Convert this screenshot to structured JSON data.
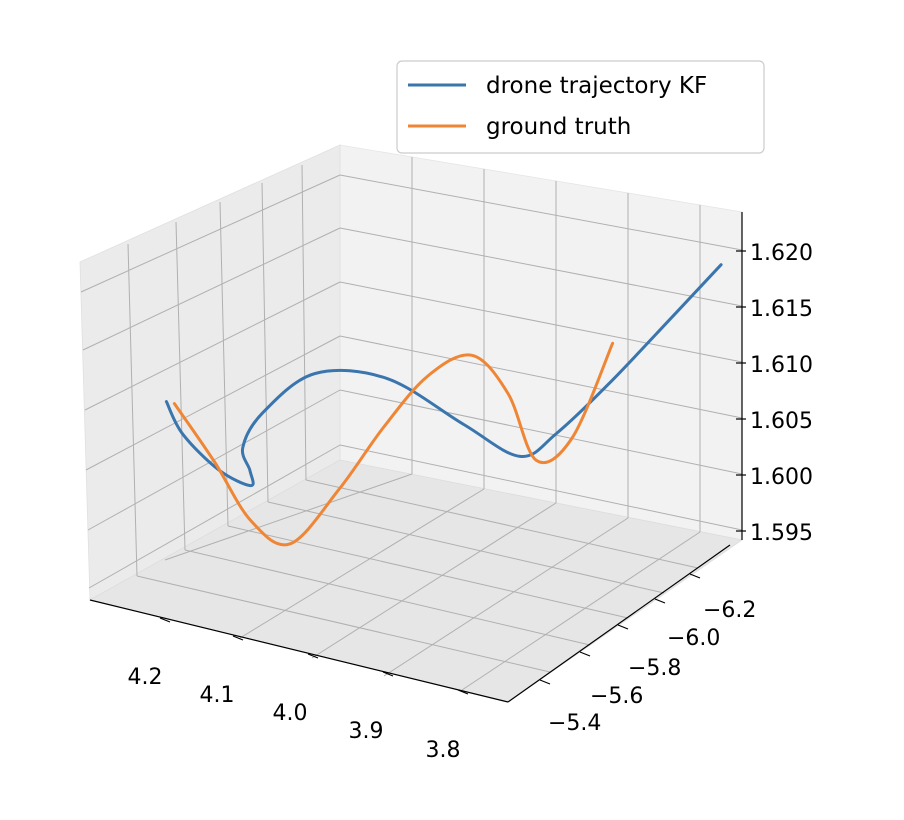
{
  "chart_data": {
    "type": "line",
    "projection": "3d",
    "grid": true,
    "legend_position": "upper-right",
    "axes": {
      "x": {
        "ticks": [
          "4.2",
          "4.1",
          "4.0",
          "3.9",
          "3.8"
        ],
        "range": [
          3.75,
          4.27
        ]
      },
      "y": {
        "ticks": [
          "−5.4",
          "−5.6",
          "−5.8",
          "−6.0",
          "−6.2"
        ],
        "range": [
          -5.35,
          -6.32
        ]
      },
      "z": {
        "ticks": [
          "1.595",
          "1.600",
          "1.605",
          "1.610",
          "1.615",
          "1.620"
        ],
        "range": [
          1.594,
          1.6225
        ]
      }
    },
    "series": [
      {
        "name": "drone trajectory KF",
        "color": "#3a75ae",
        "x": [
          4.22,
          4.23,
          4.23,
          4.22,
          4.2,
          4.17,
          4.13,
          4.08,
          4.02,
          3.97,
          3.93,
          3.9,
          3.85,
          3.8,
          3.77
        ],
        "y": [
          -5.5,
          -5.6,
          -5.75,
          -5.85,
          -5.78,
          -5.65,
          -5.6,
          -5.65,
          -5.75,
          -5.9,
          -6.0,
          -6.05,
          -6.1,
          -6.2,
          -6.3
        ],
        "z": [
          1.612,
          1.607,
          1.601,
          1.598,
          1.601,
          1.606,
          1.611,
          1.615,
          1.614,
          1.608,
          1.604,
          1.606,
          1.611,
          1.617,
          1.621
        ]
      },
      {
        "name": "ground truth",
        "color": "#ef8636",
        "x": [
          4.21,
          4.19,
          4.16,
          4.12,
          4.08,
          4.04,
          4.0,
          3.96,
          3.93,
          3.91,
          3.88,
          3.86
        ],
        "y": [
          -5.5,
          -5.6,
          -5.65,
          -5.68,
          -5.75,
          -5.8,
          -5.85,
          -5.9,
          -5.95,
          -6.0,
          -6.05,
          -6.15
        ],
        "z": [
          1.612,
          1.605,
          1.599,
          1.597,
          1.602,
          1.608,
          1.613,
          1.615,
          1.611,
          1.604,
          1.606,
          1.614
        ]
      }
    ]
  }
}
